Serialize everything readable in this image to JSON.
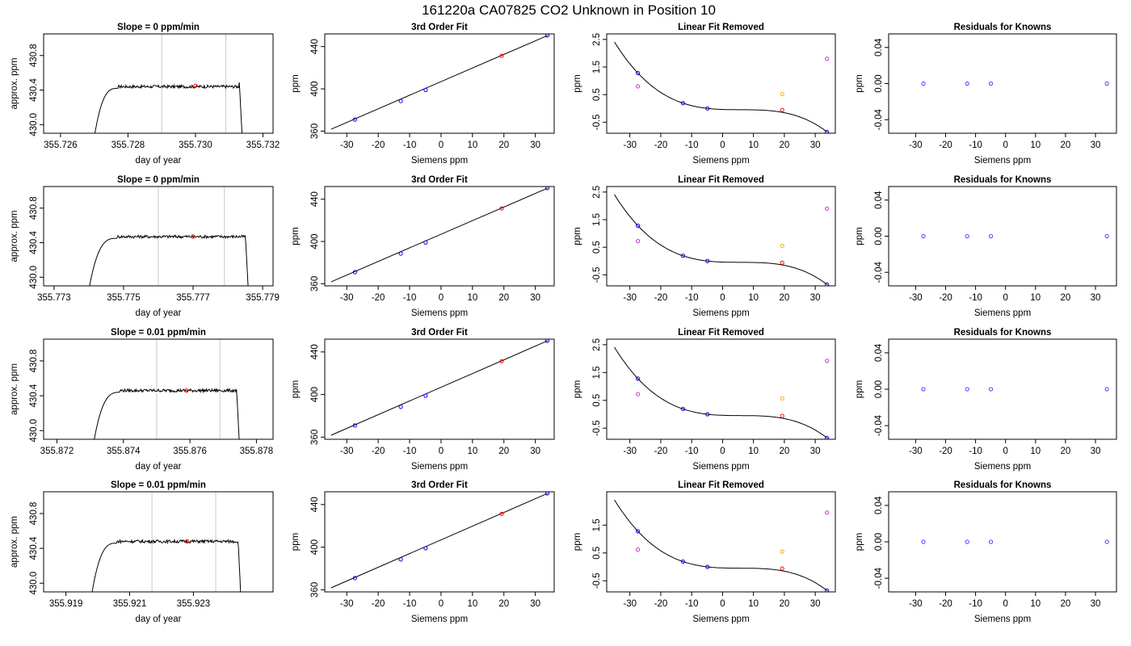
{
  "figure": {
    "title": "161220a     CA07825   CO2 Unknown in Position  10"
  },
  "colors": {
    "known": "#0000ff",
    "unknown": "#ff0000",
    "linear_removed_extra_magenta": "#cc33cc",
    "linear_removed_extra_orange": "#ffaa00",
    "residual_marker": "#6633ff",
    "window_line": "#c8c8c8",
    "curve": "#000000"
  },
  "chart_data": [
    {
      "panel": "trace",
      "row": 0,
      "type": "line",
      "title": "Slope =  0  ppm/min",
      "xlabel": "day of year",
      "ylabel": "approx. ppm",
      "xlim": [
        355.7255,
        355.7323
      ],
      "ylim": [
        429.9,
        431.05
      ],
      "xticks": [
        355.726,
        355.728,
        355.73,
        355.732
      ],
      "xtick_labels": [
        "355.726",
        "355.728",
        "355.730",
        "355.732"
      ],
      "yticks": [
        430.0,
        430.4,
        430.8
      ],
      "ytick_labels": [
        "430.0",
        "430.4",
        "430.8"
      ],
      "window": [
        355.729,
        355.7309
      ],
      "unknown_point": [
        355.73,
        430.45
      ],
      "trace": {
        "x_start": 355.727,
        "x_end": 355.7314,
        "rise_to": 355.7277,
        "plateau": 430.44,
        "end_drop_from": 355.7313
      }
    },
    {
      "panel": "trace",
      "row": 1,
      "type": "line",
      "title": "Slope =  0  ppm/min",
      "xlabel": "day of year",
      "ylabel": "approx. ppm",
      "xlim": [
        355.7727,
        355.7793
      ],
      "ylim": [
        429.9,
        431.05
      ],
      "xticks": [
        355.773,
        355.775,
        355.777,
        355.779
      ],
      "xtick_labels": [
        "355.773",
        "355.775",
        "355.777",
        "355.779"
      ],
      "yticks": [
        430.0,
        430.4,
        430.8
      ],
      "ytick_labels": [
        "430.0",
        "430.4",
        "430.8"
      ],
      "window": [
        355.776,
        355.7779
      ],
      "unknown_point": [
        355.777,
        430.47
      ],
      "trace": {
        "x_start": 355.774,
        "x_end": 355.7786,
        "rise_to": 355.7748,
        "plateau": 430.47,
        "end_drop_from": 355.7785
      }
    },
    {
      "panel": "trace",
      "row": 2,
      "type": "line",
      "title": "Slope =  0.01  ppm/min",
      "xlabel": "day of year",
      "ylabel": "approx. ppm",
      "xlim": [
        355.8716,
        355.8785
      ],
      "ylim": [
        429.9,
        431.05
      ],
      "xticks": [
        355.872,
        355.874,
        355.876,
        355.878
      ],
      "xtick_labels": [
        "355.872",
        "355.874",
        "355.876",
        "355.878"
      ],
      "yticks": [
        430.0,
        430.4,
        430.8
      ],
      "ytick_labels": [
        "430.0",
        "430.4",
        "430.8"
      ],
      "window": [
        355.875,
        355.8769
      ],
      "unknown_point": [
        355.8759,
        430.46
      ],
      "trace": {
        "x_start": 355.8731,
        "x_end": 355.8775,
        "rise_to": 355.8739,
        "plateau": 430.46,
        "end_drop_from": 355.8774
      }
    },
    {
      "panel": "trace",
      "row": 3,
      "type": "line",
      "title": "Slope =  0.01  ppm/min",
      "xlabel": "day of year",
      "ylabel": "approx. ppm",
      "xlim": [
        355.9183,
        355.9255
      ],
      "ylim": [
        429.9,
        431.05
      ],
      "xticks": [
        355.919,
        355.921,
        355.923
      ],
      "xtick_labels": [
        "355.919",
        "355.921",
        "355.923"
      ],
      "yticks": [
        430.0,
        430.4,
        430.8
      ],
      "ytick_labels": [
        "430.0",
        "430.4",
        "430.8"
      ],
      "window": [
        355.9217,
        355.9237
      ],
      "unknown_point": [
        355.9228,
        430.48
      ],
      "trace": {
        "x_start": 355.9198,
        "x_end": 355.9245,
        "rise_to": 355.9206,
        "plateau": 430.48,
        "end_drop_from": 355.9244
      }
    },
    {
      "panel": "fit",
      "type": "scatter+line",
      "title": "3rd Order Fit",
      "xlabel": "Siemens ppm",
      "ylabel": "ppm",
      "xlim": [
        -37,
        36
      ],
      "ylim": [
        358,
        452
      ],
      "xticks": [
        -30,
        -20,
        -10,
        0,
        10,
        20,
        30
      ],
      "yticks": [
        360,
        400,
        440
      ],
      "line": [
        [
          -35,
          361.8
        ],
        [
          34,
          450.6
        ]
      ],
      "knowns": [
        [
          -27.4,
          371.0
        ],
        [
          -12.8,
          388.5
        ],
        [
          -4.9,
          399.0
        ],
        [
          33.8,
          450.5
        ]
      ],
      "unknown": [
        19.3,
        431.3
      ]
    },
    {
      "panel": "linear_removed",
      "type": "scatter+line",
      "title": "Linear Fit Removed",
      "xlabel": "Siemens ppm",
      "ylabel": "ppm",
      "xlim": [
        -37.5,
        36.5
      ],
      "ylim": [
        -0.9,
        2.7
      ],
      "xticks": [
        -30,
        -20,
        -10,
        0,
        10,
        20,
        30
      ],
      "yticks_rows_0_2": [
        -0.5,
        0.5,
        1.5,
        2.5
      ],
      "ytick_labels_rows_0_2": [
        "-0.5",
        "0.5",
        "1.5",
        "2.5"
      ],
      "yticks_row_3": [
        -0.5,
        0.5,
        1.5
      ],
      "ytick_labels_row_3": [
        "-0.5",
        "0.5",
        "1.5"
      ],
      "curve_x_range": [
        -35,
        34
      ],
      "knowns": [
        [
          -27.4,
          1.28
        ],
        [
          -12.8,
          0.19
        ],
        [
          -4.9,
          0.0
        ],
        [
          33.8,
          -0.85
        ]
      ],
      "unknown": [
        19.3,
        -0.06
      ],
      "magenta_points_by_row": [
        [
          [
            -27.4,
            0.8
          ],
          [
            33.8,
            1.8
          ]
        ],
        [
          [
            -27.4,
            0.72
          ],
          [
            33.8,
            1.9
          ]
        ],
        [
          [
            -27.4,
            0.72
          ],
          [
            33.8,
            1.92
          ]
        ],
        [
          [
            -27.4,
            0.62
          ],
          [
            33.8,
            1.95
          ]
        ]
      ],
      "orange_point_by_row": [
        [
          19.3,
          0.52
        ],
        [
          19.3,
          0.55
        ],
        [
          19.3,
          0.57
        ],
        [
          19.3,
          0.55
        ]
      ]
    },
    {
      "panel": "residuals",
      "type": "scatter",
      "title": "Residuals for Knowns",
      "xlabel": "Siemens ppm",
      "ylabel": "ppm",
      "xlim": [
        -39,
        37
      ],
      "ylim": [
        -0.055,
        0.055
      ],
      "xticks": [
        -30,
        -20,
        -10,
        0,
        10,
        20,
        30
      ],
      "yticks": [
        -0.04,
        0.0,
        0.04
      ],
      "ytick_labels": [
        "-0.04",
        "0.00",
        "0.04"
      ],
      "points": [
        [
          -27.4,
          0.0
        ],
        [
          -12.8,
          0.0
        ],
        [
          -4.9,
          0.0
        ],
        [
          33.8,
          0.0
        ]
      ]
    }
  ]
}
